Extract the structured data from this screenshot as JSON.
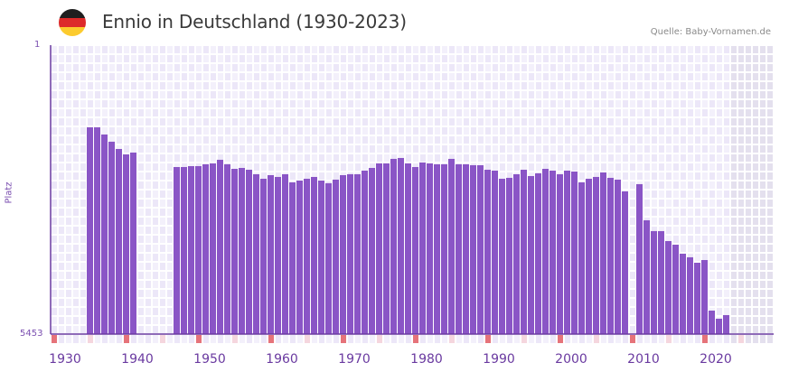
{
  "header": {
    "title": "Ennio in Deutschland (1930-2023)",
    "source": "Quelle: Baby-Vornamen.de",
    "flag_icon": "germany-flag-icon",
    "flag_colors": [
      "#1f1f1f",
      "#dd2a2a",
      "#fccb2e"
    ]
  },
  "axes": {
    "ylabel": "Platz",
    "ytick_top": "1",
    "ytick_bottom": "5453",
    "xticks": [
      "1930",
      "1940",
      "1950",
      "1960",
      "1970",
      "1980",
      "1990",
      "2000",
      "2010",
      "2020"
    ]
  },
  "colors": {
    "bar": "#8a55c6",
    "axis": "#6a3aa0",
    "grid_cell_a": "#f3f0fb",
    "grid_cell_b": "#ece7f8",
    "future_shade": "#e4e0ee",
    "marker_decade": "#e6737a",
    "marker_half": "#f5d6de",
    "tick_label": "#6a3aa0"
  },
  "chart_data": {
    "type": "bar",
    "title": "Ennio in Deutschland (1930-2023)",
    "xlabel": "",
    "ylabel": "Platz",
    "ylim": [
      5453,
      1
    ],
    "y_inverted": true,
    "grid": true,
    "x_range": [
      1930,
      2029
    ],
    "shaded_future_from": 2024,
    "x": [
      1935,
      1936,
      1937,
      1938,
      1939,
      1940,
      1941,
      1947,
      1948,
      1949,
      1950,
      1951,
      1952,
      1953,
      1954,
      1955,
      1956,
      1957,
      1958,
      1959,
      1960,
      1961,
      1962,
      1963,
      1964,
      1965,
      1966,
      1967,
      1968,
      1969,
      1970,
      1971,
      1972,
      1973,
      1974,
      1975,
      1976,
      1977,
      1978,
      1979,
      1980,
      1981,
      1982,
      1983,
      1984,
      1985,
      1986,
      1987,
      1988,
      1989,
      1990,
      1991,
      1992,
      1993,
      1994,
      1995,
      1996,
      1997,
      1998,
      1999,
      2000,
      2001,
      2002,
      2003,
      2004,
      2005,
      2006,
      2007,
      2008,
      2009,
      2011,
      2012,
      2013,
      2014,
      2015,
      2016,
      2017,
      2018,
      2019,
      2020,
      2021,
      2022,
      2023
    ],
    "values": [
      1551,
      1551,
      1687,
      1823,
      1960,
      2062,
      2028,
      2301,
      2301,
      2284,
      2284,
      2249,
      2232,
      2164,
      2249,
      2335,
      2318,
      2352,
      2437,
      2522,
      2454,
      2488,
      2437,
      2590,
      2556,
      2522,
      2488,
      2556,
      2607,
      2539,
      2454,
      2437,
      2437,
      2369,
      2318,
      2232,
      2232,
      2147,
      2130,
      2232,
      2301,
      2215,
      2232,
      2249,
      2249,
      2147,
      2249,
      2249,
      2267,
      2267,
      2352,
      2369,
      2522,
      2505,
      2437,
      2352,
      2471,
      2420,
      2335,
      2369,
      2437,
      2369,
      2386,
      2590,
      2522,
      2488,
      2403,
      2505,
      2539,
      2761,
      2624,
      3306,
      3510,
      3510,
      3698,
      3766,
      3936,
      4004,
      4107,
      4056,
      5010,
      5163,
      5095
    ]
  }
}
